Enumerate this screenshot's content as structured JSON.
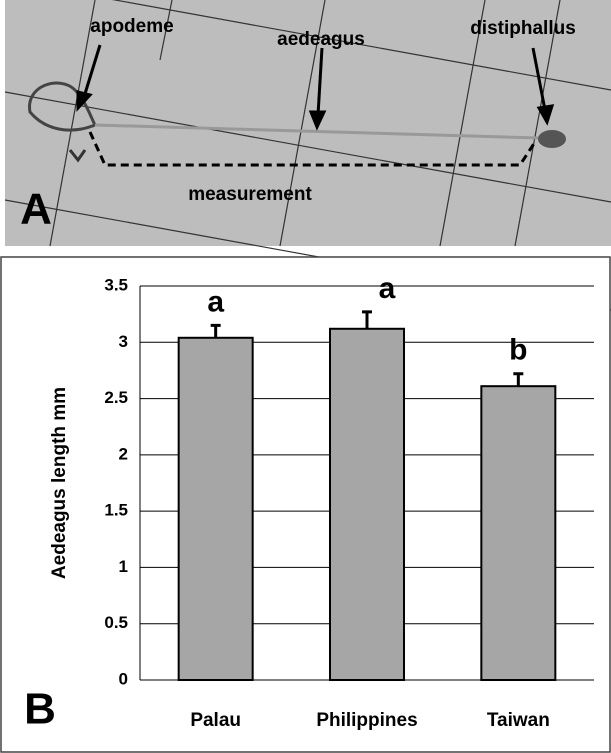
{
  "panel_a": {
    "label": "A",
    "annotations": [
      "apodeme",
      "aedeagus",
      "distiphallus",
      "measurement"
    ]
  },
  "chart_data": {
    "type": "bar",
    "panel_label": "B",
    "y_label": "Aedeagus length mm",
    "categories": [
      "Palau",
      "Philippines",
      "Taiwan"
    ],
    "values": [
      3.04,
      3.12,
      2.61
    ],
    "errors": [
      0.11,
      0.15,
      0.11
    ],
    "annotations": [
      "a",
      "a",
      "b"
    ],
    "color": "#a6a6a6",
    "ylim": [
      0,
      3.5
    ],
    "yticks": [
      0,
      0.5,
      1,
      1.5,
      2,
      2.5,
      3,
      3.5
    ],
    "grid": true
  }
}
